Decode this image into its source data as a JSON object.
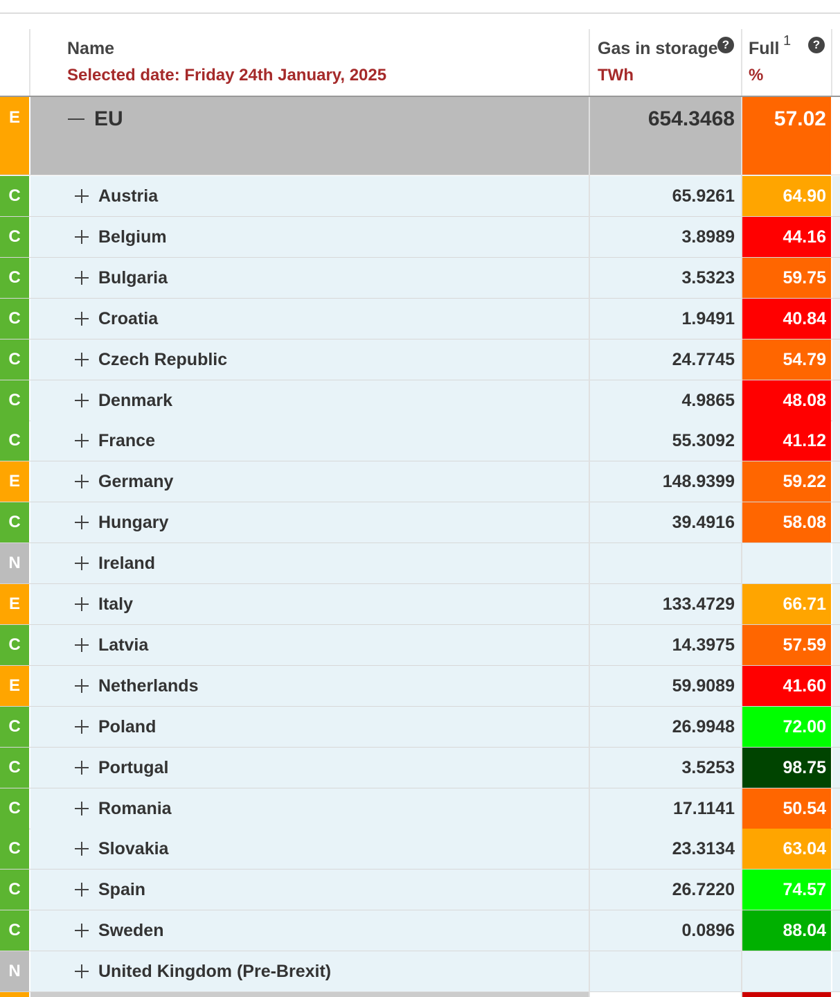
{
  "header": {
    "name": "Name",
    "selected_date": "Selected date: Friday 24th January, 2025",
    "gas_label": "Gas in storage",
    "gas_unit": "TWh",
    "full_label": "Full",
    "full_note": "1",
    "full_unit": "%",
    "help_icon": "?"
  },
  "status_colors": {
    "E": "#ffa500",
    "C": "#5cb531",
    "N": "#bcbcbc"
  },
  "total": {
    "status": "E",
    "name": "EU",
    "gas": "654.3468",
    "full": "57.02",
    "full_color": "#ff6600"
  },
  "rows": [
    {
      "status": "C",
      "name": "Austria",
      "gas": "65.9261",
      "full": "64.90",
      "full_color": "#ffa500"
    },
    {
      "status": "C",
      "name": "Belgium",
      "gas": "3.8989",
      "full": "44.16",
      "full_color": "#ff0000"
    },
    {
      "status": "C",
      "name": "Bulgaria",
      "gas": "3.5323",
      "full": "59.75",
      "full_color": "#ff6600"
    },
    {
      "status": "C",
      "name": "Croatia",
      "gas": "1.9491",
      "full": "40.84",
      "full_color": "#ff0000"
    },
    {
      "status": "C",
      "name": "Czech Republic",
      "gas": "24.7745",
      "full": "54.79",
      "full_color": "#ff6600"
    },
    {
      "status": "C",
      "name": "Denmark",
      "gas": "4.9865",
      "full": "48.08",
      "full_color": "#ff0000"
    },
    {
      "status": "C",
      "name": "France",
      "gas": "55.3092",
      "full": "41.12",
      "full_color": "#ff0000"
    },
    {
      "status": "E",
      "name": "Germany",
      "gas": "148.9399",
      "full": "59.22",
      "full_color": "#ff6600"
    },
    {
      "status": "C",
      "name": "Hungary",
      "gas": "39.4916",
      "full": "58.08",
      "full_color": "#ff6600"
    },
    {
      "status": "N",
      "name": "Ireland",
      "gas": null,
      "full": null,
      "full_color": null
    },
    {
      "status": "E",
      "name": "Italy",
      "gas": "133.4729",
      "full": "66.71",
      "full_color": "#ffa500"
    },
    {
      "status": "C",
      "name": "Latvia",
      "gas": "14.3975",
      "full": "57.59",
      "full_color": "#ff6600"
    },
    {
      "status": "E",
      "name": "Netherlands",
      "gas": "59.9089",
      "full": "41.60",
      "full_color": "#ff0000"
    },
    {
      "status": "C",
      "name": "Poland",
      "gas": "26.9948",
      "full": "72.00",
      "full_color": "#00ff00"
    },
    {
      "status": "C",
      "name": "Portugal",
      "gas": "3.5253",
      "full": "98.75",
      "full_color": "#004400"
    },
    {
      "status": "C",
      "name": "Romania",
      "gas": "17.1141",
      "full": "50.54",
      "full_color": "#ff6600"
    },
    {
      "status": "C",
      "name": "Slovakia",
      "gas": "23.3134",
      "full": "63.04",
      "full_color": "#ffa500"
    },
    {
      "status": "C",
      "name": "Spain",
      "gas": "26.7220",
      "full": "74.57",
      "full_color": "#00ff00"
    },
    {
      "status": "C",
      "name": "Sweden",
      "gas": "0.0896",
      "full": "88.04",
      "full_color": "#00b000"
    },
    {
      "status": "N",
      "name": "United Kingdom (Pre-Brexit)",
      "gas": null,
      "full": null,
      "full_color": null
    }
  ]
}
